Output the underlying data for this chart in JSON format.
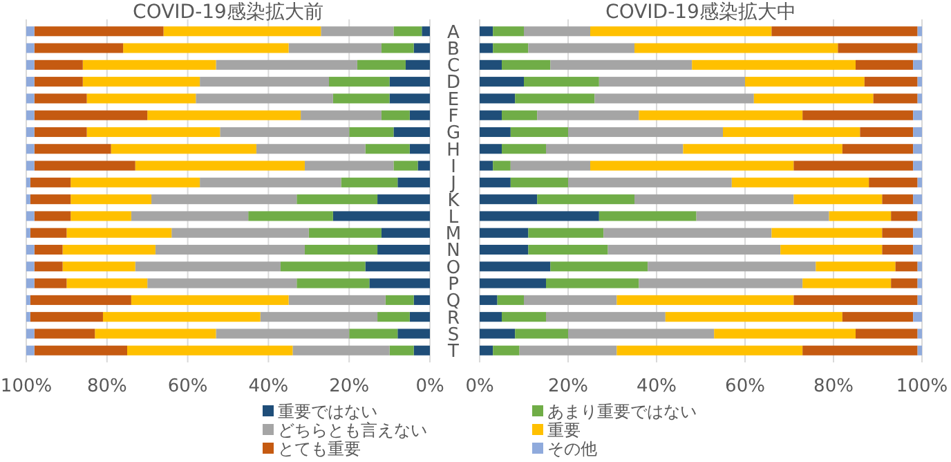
{
  "chart_data": [
    {
      "type": "bar",
      "orientation": "horizontal",
      "stacked": true,
      "title": "COVID-19感染拡大前",
      "categories": [
        "A",
        "B",
        "C",
        "D",
        "E",
        "F",
        "G",
        "H",
        "I",
        "J",
        "K",
        "L",
        "M",
        "N",
        "O",
        "P",
        "Q",
        "R",
        "S",
        "T"
      ],
      "xlim": [
        100,
        0
      ],
      "xticks": [
        {
          "value": 100,
          "label": "100%"
        },
        {
          "value": 80,
          "label": "80%"
        },
        {
          "value": 60,
          "label": "60%"
        },
        {
          "value": 40,
          "label": "40%"
        },
        {
          "value": 20,
          "label": "20%"
        },
        {
          "value": 0,
          "label": "0%"
        }
      ],
      "grid": "x",
      "legend": "bottom",
      "series": [
        {
          "name": "重要ではない",
          "color": "#1f4e79",
          "values": [
            2,
            4,
            6,
            10,
            10,
            5,
            9,
            5,
            3,
            8,
            13,
            24,
            12,
            13,
            16,
            15,
            4,
            5,
            8,
            4
          ]
        },
        {
          "name": "あまり重要ではない",
          "color": "#70ad47",
          "values": [
            7,
            8,
            12,
            15,
            14,
            7,
            11,
            11,
            6,
            14,
            20,
            21,
            18,
            18,
            21,
            18,
            7,
            8,
            12,
            6
          ]
        },
        {
          "name": "どちらとも言えない",
          "color": "#a5a5a5",
          "values": [
            18,
            23,
            35,
            32,
            34,
            20,
            32,
            27,
            22,
            35,
            36,
            29,
            34,
            37,
            36,
            37,
            24,
            29,
            33,
            24
          ]
        },
        {
          "name": "重要",
          "color": "#ffc000",
          "values": [
            39,
            41,
            33,
            29,
            27,
            38,
            33,
            36,
            42,
            32,
            20,
            15,
            26,
            23,
            18,
            20,
            39,
            39,
            30,
            41
          ]
        },
        {
          "name": "とても重要",
          "color": "#c55a11",
          "values": [
            32,
            22,
            12,
            12,
            13,
            28,
            13,
            19,
            25,
            10,
            10,
            9,
            9,
            7,
            7,
            8,
            25,
            18,
            15,
            23
          ]
        },
        {
          "name": "その他",
          "color": "#8faadc",
          "values": [
            2,
            2,
            2,
            2,
            2,
            2,
            2,
            2,
            2,
            1,
            1,
            2,
            1,
            2,
            2,
            2,
            1,
            1,
            2,
            2
          ]
        }
      ]
    },
    {
      "type": "bar",
      "orientation": "horizontal",
      "stacked": true,
      "title": "COVID-19感染拡大中",
      "categories": [
        null,
        null,
        null,
        null,
        null,
        null,
        null,
        null,
        null,
        null,
        null,
        null,
        null,
        null,
        null,
        null,
        null,
        null,
        null,
        null
      ],
      "xlim": [
        0,
        100
      ],
      "xticks": [
        {
          "value": 0,
          "label": "0%"
        },
        {
          "value": 20,
          "label": "20%"
        },
        {
          "value": 40,
          "label": "40%"
        },
        {
          "value": 60,
          "label": "60%"
        },
        {
          "value": 80,
          "label": "80%"
        },
        {
          "value": 100,
          "label": "100%"
        }
      ],
      "grid": "x",
      "tick_labels": "x",
      "series": [
        {
          "color": "#1f4e79",
          "values": [
            3,
            3,
            5,
            10,
            8,
            5,
            7,
            5,
            3,
            7,
            13,
            27,
            11,
            11,
            16,
            15,
            4,
            5,
            8,
            3
          ]
        },
        {
          "color": "#70ad47",
          "values": [
            7,
            8,
            11,
            17,
            18,
            8,
            13,
            10,
            4,
            13,
            22,
            22,
            17,
            18,
            22,
            21,
            6,
            10,
            12,
            6
          ]
        },
        {
          "color": "#a5a5a5",
          "values": [
            15,
            24,
            32,
            33,
            36,
            23,
            35,
            31,
            18,
            37,
            36,
            30,
            38,
            39,
            38,
            37,
            21,
            27,
            33,
            22
          ]
        },
        {
          "color": "#ffc000",
          "values": [
            41,
            46,
            37,
            27,
            27,
            37,
            31,
            36,
            46,
            31,
            20,
            14,
            25,
            23,
            18,
            20,
            40,
            40,
            32,
            42
          ]
        },
        {
          "color": "#c55a11",
          "values": [
            33,
            18,
            13,
            12,
            10,
            25,
            12,
            16,
            27,
            11,
            7,
            6,
            7,
            7,
            5,
            6,
            28,
            16,
            14,
            26
          ]
        },
        {
          "color": "#8faadc",
          "values": [
            1,
            1,
            2,
            1,
            1,
            2,
            2,
            2,
            2,
            1,
            2,
            1,
            2,
            2,
            1,
            1,
            1,
            2,
            1,
            1
          ]
        }
      ]
    }
  ]
}
